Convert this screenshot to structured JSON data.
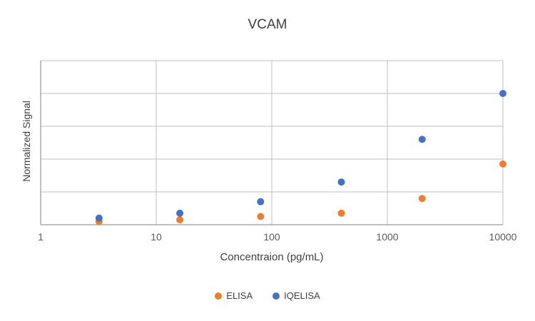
{
  "chart_data": {
    "type": "scatter",
    "title": "VCAM",
    "xlabel": "Concentraion (pg/mL)",
    "ylabel": "Normalized Signal",
    "x_scale": "log",
    "xlim": [
      1,
      10000
    ],
    "x_ticks": [
      1,
      10,
      100,
      1000,
      10000
    ],
    "x_tick_labels": [
      "1",
      "10",
      "100",
      "1000",
      "10000"
    ],
    "ylim": [
      0,
      1
    ],
    "y_grid_step": 0.2,
    "grid": true,
    "legend_position": "bottom",
    "x": [
      3.2,
      16,
      80,
      400,
      2000,
      10000
    ],
    "series": [
      {
        "name": "ELISA",
        "color": "#ED7D31",
        "values": [
          0.02,
          0.03,
          0.05,
          0.07,
          0.16,
          0.37
        ]
      },
      {
        "name": "IQELISA",
        "color": "#4472C4",
        "values": [
          0.04,
          0.07,
          0.14,
          0.26,
          0.52,
          0.8
        ]
      }
    ],
    "colors": {
      "gridline": "#bfbfbf",
      "axis": "#808080",
      "tick_text": "#595959"
    }
  }
}
